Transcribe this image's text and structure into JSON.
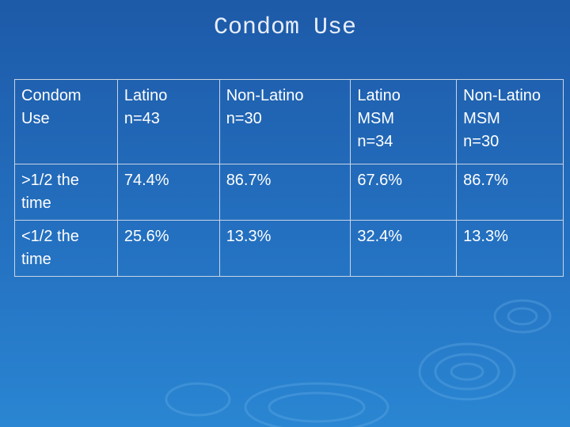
{
  "header": {
    "title": "Condom Use"
  },
  "table": {
    "columns": [
      [
        "Condom Use"
      ],
      [
        "Latino",
        "n=43"
      ],
      [
        "Non-Latino",
        "n=30"
      ],
      [
        "Latino",
        "MSM",
        "n=34"
      ],
      [
        "Non-Latino",
        "MSM",
        "n=30"
      ]
    ],
    "rows": [
      [
        ">1/2 the time",
        "74.4%",
        "86.7%",
        "67.6%",
        "86.7%"
      ],
      [
        "<1/2 the time",
        "25.6%",
        "13.3%",
        "32.4%",
        "13.3%"
      ]
    ]
  }
}
